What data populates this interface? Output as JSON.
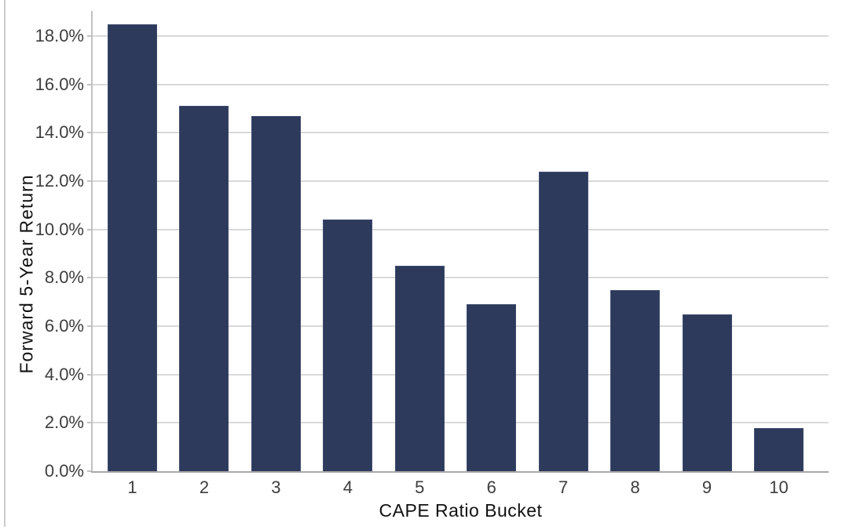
{
  "chart_data": {
    "type": "bar",
    "title": "",
    "xlabel": "CAPE Ratio Bucket",
    "ylabel": "Forward 5-Year Return",
    "categories": [
      "1",
      "2",
      "3",
      "4",
      "5",
      "6",
      "7",
      "8",
      "9",
      "10"
    ],
    "values": [
      18.5,
      15.1,
      14.7,
      10.4,
      8.5,
      6.9,
      12.4,
      7.5,
      6.5,
      1.8
    ],
    "unit": "%",
    "ylim": [
      0,
      19
    ],
    "ytick_values": [
      0,
      2,
      4,
      6,
      8,
      10,
      12,
      14,
      16,
      18
    ],
    "ytick_labels": [
      "0.0%",
      "2.0%",
      "4.0%",
      "6.0%",
      "8.0%",
      "10.0%",
      "12.0%",
      "14.0%",
      "16.0%",
      "18.0%"
    ],
    "grid": "horizontal",
    "legend": "none",
    "colors": {
      "bar_fill": "#2d3a5c",
      "bar_border": "#404c6e",
      "gridline": "#d9d9d9",
      "axis_line": "#a9a9a9",
      "tick_text": "#3d3d3d",
      "title_text": "#111111"
    }
  }
}
